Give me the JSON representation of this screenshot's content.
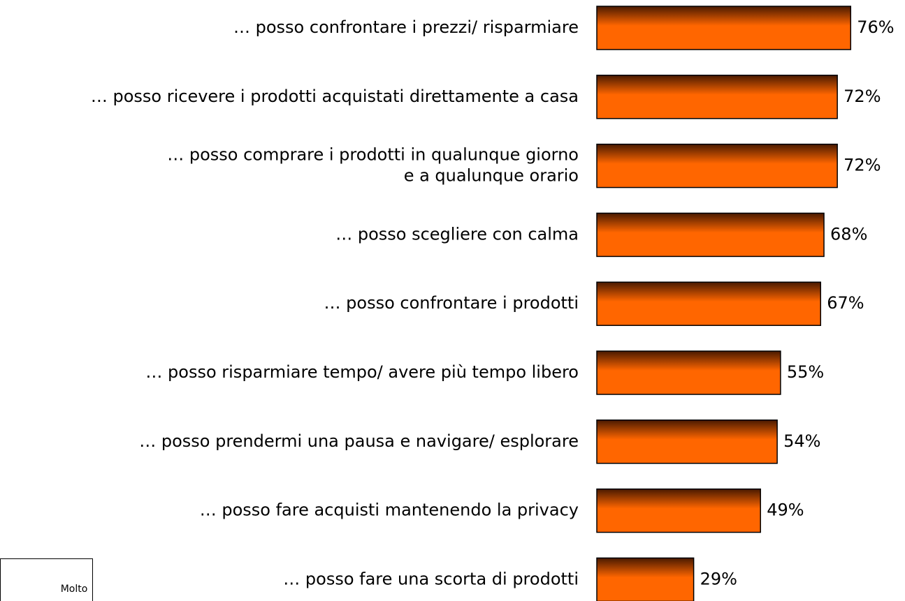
{
  "chart_data": {
    "type": "bar",
    "orientation": "horizontal",
    "categories": [
      "… posso confrontare i prezzi/ risparmiare",
      "… posso ricevere i prodotti acquistati direttamente a casa",
      "… posso comprare i prodotti in qualunque giorno\ne a qualunque orario",
      "… posso scegliere con calma",
      "… posso confrontare i prodotti",
      "… posso risparmiare tempo/ avere più tempo libero",
      "… posso prendermi una pausa e navigare/ esplorare",
      "… posso fare acquisti mantenendo la privacy",
      "… posso fare una scorta di prodotti"
    ],
    "series": [
      {
        "name": "Molto",
        "color": "#ff6600",
        "values": [
          76,
          72,
          72,
          68,
          67,
          55,
          54,
          49,
          29
        ],
        "value_labels": [
          "76%",
          "72%",
          "72%",
          "68%",
          "67%",
          "55%",
          "54%",
          "49%",
          "29%"
        ]
      }
    ],
    "xlim": [
      0,
      100
    ]
  }
}
